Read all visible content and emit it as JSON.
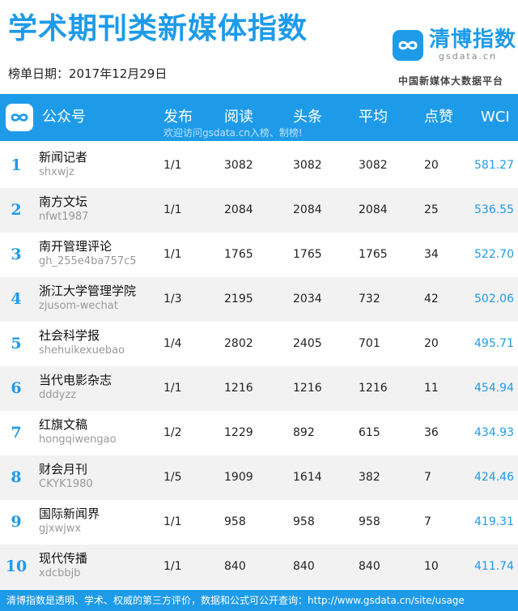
{
  "header": {
    "title": "学术期刊类新媒体指数",
    "date_line": "榜单日期：2017年12月29日",
    "brand_name": "清博指数",
    "brand_domain": "gsdata.cn",
    "brand_sub": "中国新媒体大数据平台",
    "brand_logo_icon": "infinity-logo-icon"
  },
  "colors": {
    "accent": "#1e9be8",
    "row_alt": "#f2f2f2"
  },
  "table": {
    "headers": {
      "account": "公众号",
      "publish": "发布",
      "read": "阅读",
      "headline": "头条",
      "average": "平均",
      "likes": "点赞",
      "wci": "WCI"
    },
    "hint": "欢迎访问gsdata.cn入榜、制榜!",
    "rows": [
      {
        "rank": "1",
        "name": "新闻记者",
        "id": "shxwjz",
        "publish": "1/1",
        "read": "3082",
        "headline": "3082",
        "average": "3082",
        "likes": "20",
        "wci": "581.27"
      },
      {
        "rank": "2",
        "name": "南方文坛",
        "id": "nfwt1987",
        "publish": "1/1",
        "read": "2084",
        "headline": "2084",
        "average": "2084",
        "likes": "25",
        "wci": "536.55"
      },
      {
        "rank": "3",
        "name": "南开管理评论",
        "id": "gh_255e4ba757c5",
        "publish": "1/1",
        "read": "1765",
        "headline": "1765",
        "average": "1765",
        "likes": "34",
        "wci": "522.70"
      },
      {
        "rank": "4",
        "name": "浙江大学管理学院",
        "id": "zjusom-wechat",
        "publish": "1/3",
        "read": "2195",
        "headline": "2034",
        "average": "732",
        "likes": "42",
        "wci": "502.06"
      },
      {
        "rank": "5",
        "name": "社会科学报",
        "id": "shehuikexuebao",
        "publish": "1/4",
        "read": "2802",
        "headline": "2405",
        "average": "701",
        "likes": "20",
        "wci": "495.71"
      },
      {
        "rank": "6",
        "name": "当代电影杂志",
        "id": "dddyzz",
        "publish": "1/1",
        "read": "1216",
        "headline": "1216",
        "average": "1216",
        "likes": "11",
        "wci": "454.94"
      },
      {
        "rank": "7",
        "name": "红旗文稿",
        "id": "hongqiwengao",
        "publish": "1/2",
        "read": "1229",
        "headline": "892",
        "average": "615",
        "likes": "36",
        "wci": "434.93"
      },
      {
        "rank": "8",
        "name": "财会月刊",
        "id": "CKYK1980",
        "publish": "1/5",
        "read": "1909",
        "headline": "1614",
        "average": "382",
        "likes": "7",
        "wci": "424.46"
      },
      {
        "rank": "9",
        "name": "国际新闻界",
        "id": "gjxwjwx",
        "publish": "1/1",
        "read": "958",
        "headline": "958",
        "average": "958",
        "likes": "7",
        "wci": "419.31"
      },
      {
        "rank": "10",
        "name": "现代传播",
        "id": "xdcbbjb",
        "publish": "1/1",
        "read": "840",
        "headline": "840",
        "average": "840",
        "likes": "10",
        "wci": "411.74"
      }
    ]
  },
  "footer": {
    "text": "清博指数是透明、学术、权威的第三方评价，数据和公式可公开查询：http://www.gsdata.cn/site/usage"
  }
}
